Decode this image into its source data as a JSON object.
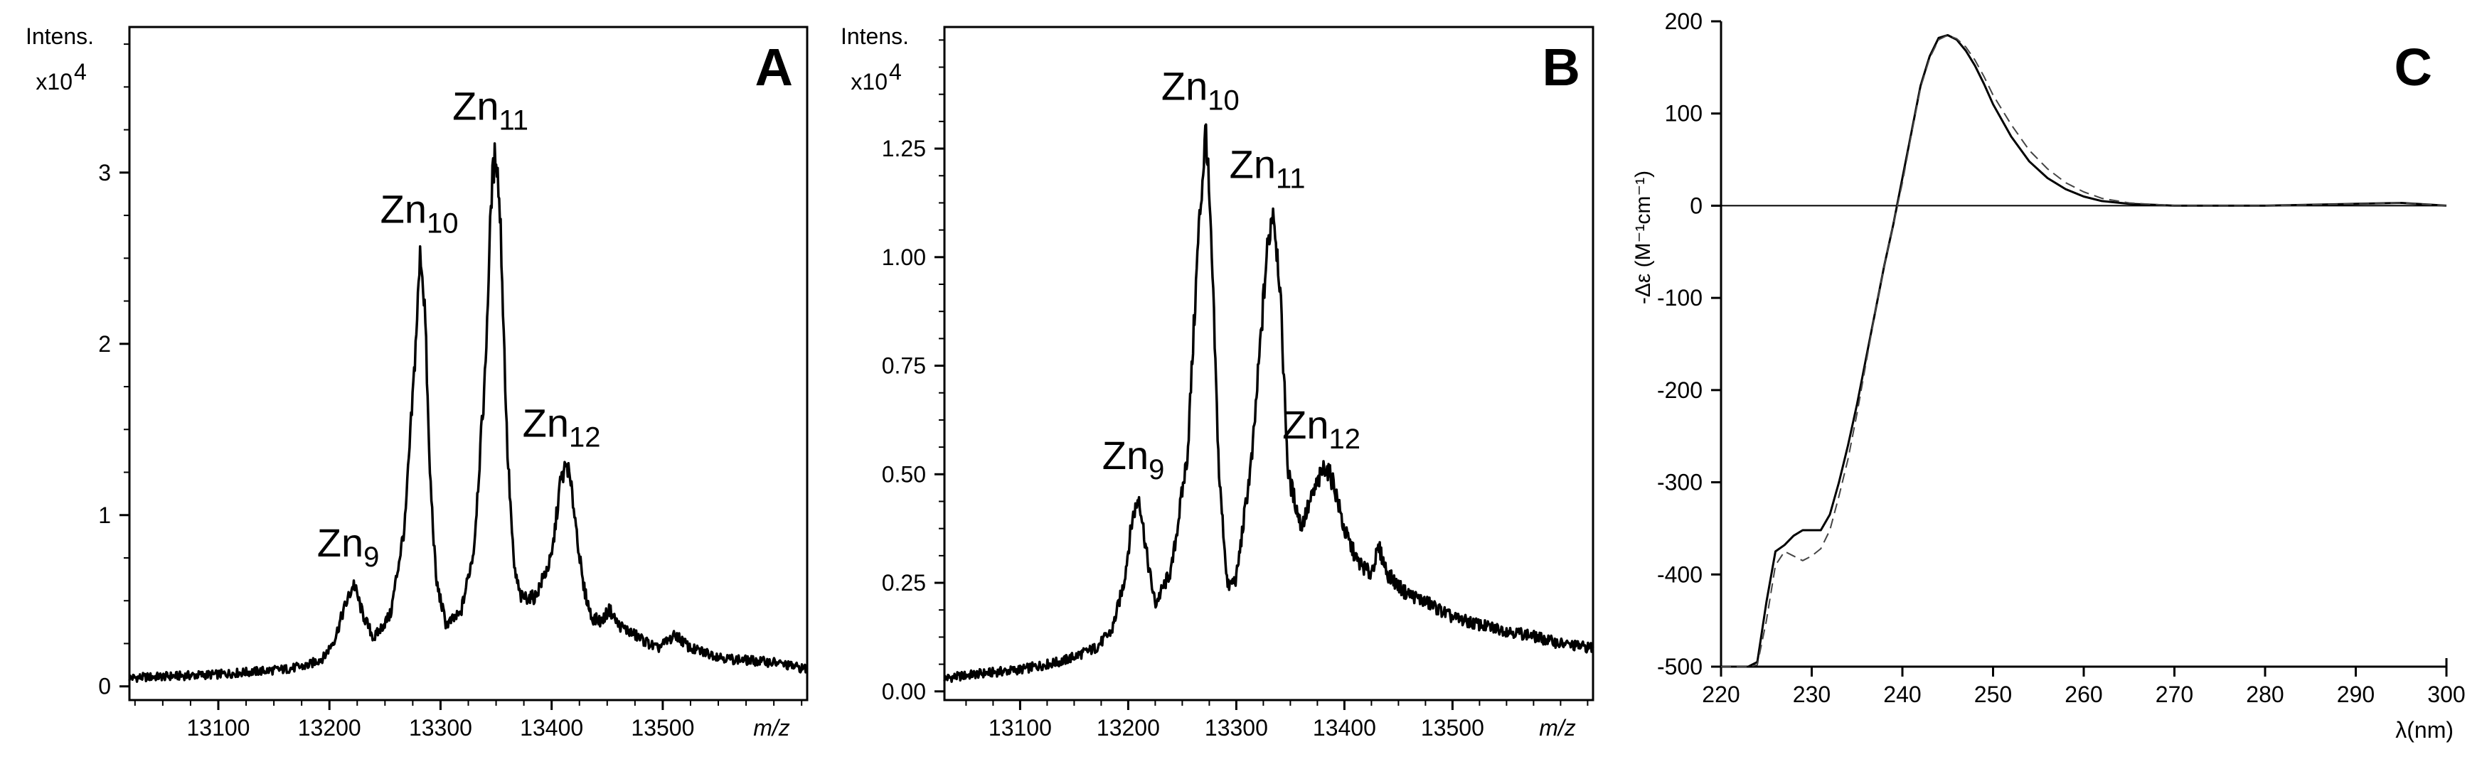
{
  "chart_data": [
    {
      "panel": "A",
      "type": "line",
      "ylabel": "Intens.",
      "ylabel_scale": "x10",
      "ylabel_scale_exp": "4",
      "xlabel": "m/z",
      "xlim": [
        13020,
        13630
      ],
      "ylim": [
        -0.08,
        3.85
      ],
      "xticks": [
        13100,
        13200,
        13300,
        13400,
        13500
      ],
      "yticks": [
        0,
        1,
        2,
        3
      ],
      "ytick_labels": [
        "0",
        "1",
        "2",
        "3"
      ],
      "series": [
        {
          "x": [
            13020,
            13060,
            13100,
            13140,
            13160,
            13180,
            13195,
            13205,
            13213,
            13222,
            13230,
            13240,
            13255,
            13268,
            13276,
            13282,
            13286,
            13290,
            13296,
            13305,
            13318,
            13330,
            13340,
            13346,
            13350,
            13354,
            13360,
            13366,
            13372,
            13385,
            13400,
            13408,
            13414,
            13420,
            13428,
            13436,
            13445,
            13452,
            13460,
            13475,
            13495,
            13512,
            13525,
            13560,
            13600,
            13630
          ],
          "y": [
            0.05,
            0.06,
            0.07,
            0.09,
            0.1,
            0.12,
            0.17,
            0.28,
            0.45,
            0.6,
            0.42,
            0.28,
            0.42,
            0.95,
            1.8,
            2.55,
            2.2,
            1.3,
            0.62,
            0.36,
            0.42,
            0.8,
            1.8,
            2.9,
            3.15,
            2.7,
            1.4,
            0.7,
            0.52,
            0.52,
            0.75,
            1.2,
            1.3,
            1.05,
            0.6,
            0.4,
            0.38,
            0.45,
            0.36,
            0.3,
            0.22,
            0.3,
            0.22,
            0.16,
            0.14,
            0.1
          ]
        }
      ],
      "peak_labels": [
        {
          "text": "Zn",
          "sub": "9",
          "x": 13222
        },
        {
          "text": "Zn",
          "sub": "10",
          "x": 13286
        },
        {
          "text": "Zn",
          "sub": "11",
          "x": 13350
        },
        {
          "text": "Zn",
          "sub": "12",
          "x": 13414
        }
      ]
    },
    {
      "panel": "B",
      "type": "line",
      "ylabel": "Intens.",
      "ylabel_scale": "x10",
      "ylabel_scale_exp": "4",
      "xlabel": "m/z",
      "xlim": [
        13030,
        13630
      ],
      "ylim": [
        -0.02,
        1.53
      ],
      "xticks": [
        13100,
        13200,
        13300,
        13400,
        13500
      ],
      "yticks": [
        0,
        0.25,
        0.5,
        0.75,
        1.0,
        1.25
      ],
      "ytick_labels": [
        "0.00",
        "0.25",
        "0.50",
        "0.75",
        "1.00",
        "1.25"
      ],
      "series": [
        {
          "x": [
            13030,
            13060,
            13100,
            13140,
            13170,
            13185,
            13196,
            13204,
            13210,
            13218,
            13225,
            13240,
            13255,
            13265,
            13272,
            13278,
            13284,
            13292,
            13300,
            13315,
            13328,
            13334,
            13340,
            13348,
            13360,
            13372,
            13382,
            13390,
            13400,
            13412,
            13424,
            13432,
            13440,
            13455,
            13480,
            13500,
            13530,
            13570,
            13600,
            13630
          ],
          "y": [
            0.03,
            0.04,
            0.05,
            0.07,
            0.1,
            0.14,
            0.25,
            0.4,
            0.45,
            0.3,
            0.2,
            0.28,
            0.55,
            1.05,
            1.3,
            0.95,
            0.5,
            0.24,
            0.26,
            0.55,
            1.0,
            1.12,
            0.95,
            0.5,
            0.38,
            0.46,
            0.52,
            0.48,
            0.37,
            0.3,
            0.27,
            0.33,
            0.27,
            0.23,
            0.2,
            0.17,
            0.15,
            0.13,
            0.11,
            0.1
          ]
        }
      ],
      "peak_labels": [
        {
          "text": "Zn",
          "sub": "9",
          "x": 13210
        },
        {
          "text": "Zn",
          "sub": "10",
          "x": 13272
        },
        {
          "text": "Zn",
          "sub": "11",
          "x": 13334
        },
        {
          "text": "Zn",
          "sub": "12",
          "x": 13384
        }
      ]
    },
    {
      "panel": "C",
      "type": "line",
      "ylabel": "-Δε (M⁻¹cm⁻¹)",
      "xlabel": "λ(nm)",
      "xlim": [
        220,
        300
      ],
      "ylim": [
        -500,
        200
      ],
      "xticks": [
        220,
        230,
        240,
        250,
        260,
        270,
        280,
        290,
        300
      ],
      "yticks": [
        -500,
        -400,
        -300,
        -200,
        -100,
        0,
        100,
        200
      ],
      "ytick_labels": [
        "-500",
        "-400",
        "-300",
        "-200",
        "-100",
        "0",
        "100",
        "200"
      ],
      "zero_line": true,
      "series": [
        {
          "style": "solid",
          "x": [
            220,
            223,
            224,
            225,
            226,
            227,
            228,
            229,
            230,
            231,
            232,
            233,
            234,
            235,
            236,
            237,
            238,
            239,
            240,
            241,
            242,
            243,
            244,
            245,
            246,
            247,
            248,
            249,
            250,
            252,
            254,
            256,
            258,
            260,
            262,
            265,
            270,
            280,
            290,
            295,
            300
          ],
          "y": [
            -500,
            -500,
            -495,
            -430,
            -375,
            -368,
            -358,
            -352,
            -352,
            -352,
            -335,
            -300,
            -260,
            -215,
            -165,
            -115,
            -65,
            -20,
            30,
            80,
            130,
            162,
            182,
            185,
            180,
            168,
            152,
            132,
            110,
            75,
            48,
            30,
            18,
            10,
            5,
            2,
            0,
            0,
            2,
            3,
            0
          ]
        },
        {
          "style": "dashed",
          "x": [
            220,
            223,
            224,
            225,
            226,
            227,
            228,
            229,
            230,
            231,
            232,
            233,
            234,
            235,
            236,
            237,
            238,
            239,
            240,
            241,
            242,
            243,
            244,
            245,
            246,
            247,
            248,
            249,
            250,
            252,
            254,
            256,
            258,
            260,
            262,
            265,
            270,
            280,
            290,
            295,
            300
          ],
          "y": [
            -500,
            -500,
            -498,
            -450,
            -390,
            -375,
            -380,
            -385,
            -380,
            -372,
            -352,
            -315,
            -275,
            -225,
            -170,
            -115,
            -65,
            -20,
            25,
            78,
            128,
            160,
            180,
            185,
            181,
            172,
            158,
            140,
            120,
            88,
            60,
            40,
            25,
            15,
            8,
            3,
            0,
            0,
            2,
            3,
            0
          ]
        }
      ],
      "peak_labels": []
    }
  ]
}
